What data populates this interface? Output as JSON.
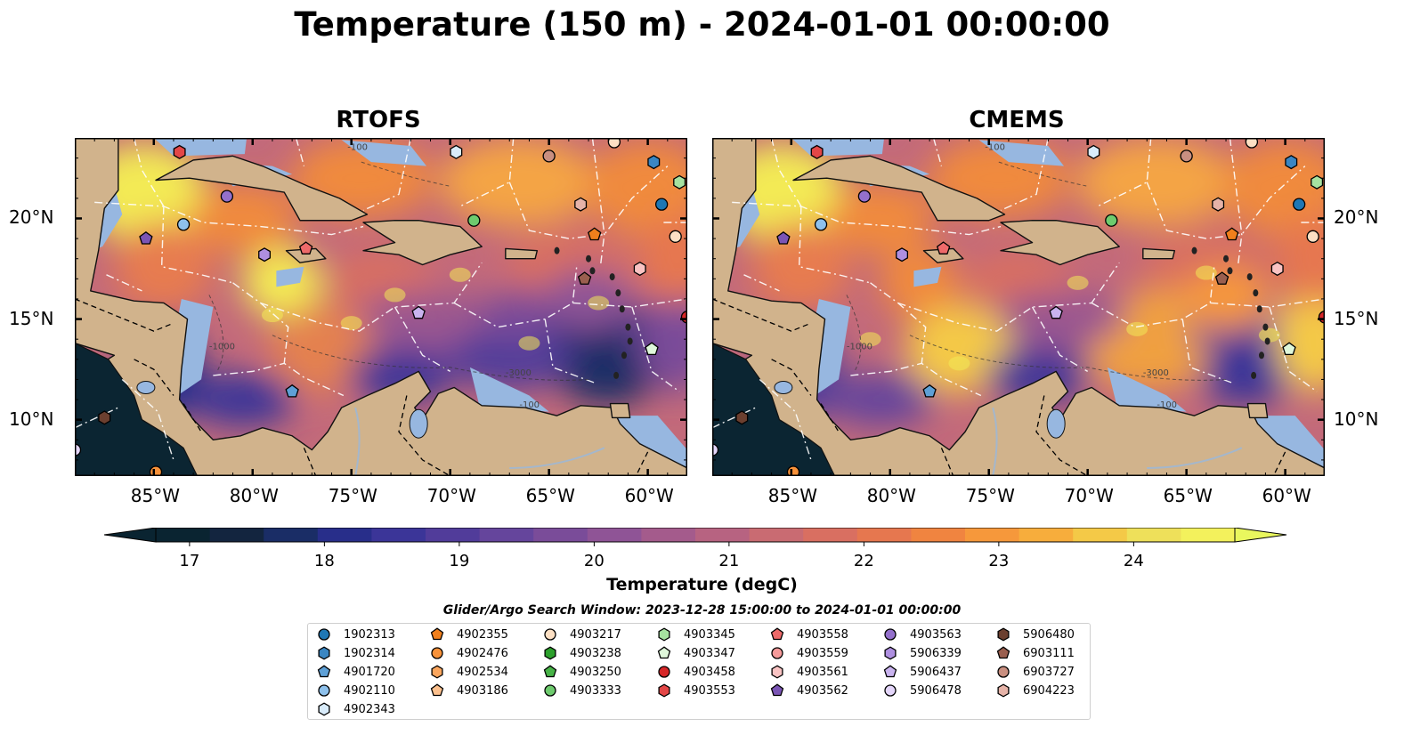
{
  "title": "Temperature (150 m) - 2024-01-01 00:00:00",
  "panels": [
    {
      "title": "RTOFS"
    },
    {
      "title": "CMEMS"
    }
  ],
  "axes": {
    "lon_ticks": [
      "85°W",
      "80°W",
      "75°W",
      "70°W",
      "65°W",
      "60°W"
    ],
    "lat_ticks": [
      "20°N",
      "15°N",
      "10°N"
    ],
    "lon_range": [
      -89,
      -58
    ],
    "lat_range": [
      7.2,
      24
    ]
  },
  "colorbar": {
    "label": "Temperature (degC)",
    "ticks": [
      "17",
      "18",
      "19",
      "20",
      "21",
      "22",
      "23",
      "24"
    ],
    "range": [
      16.75,
      24.75
    ],
    "extend": "both",
    "colors": [
      "#0a2431",
      "#13253f",
      "#1a2d66",
      "#282e8a",
      "#3b3598",
      "#513c9a",
      "#65459c",
      "#7a4c99",
      "#8f5496",
      "#a45b8c",
      "#b76381",
      "#c96b72",
      "#d96f61",
      "#e6774f",
      "#f08440",
      "#f6983b",
      "#f7ad3c",
      "#f4c947",
      "#eee05a",
      "#f3f15c"
    ],
    "min_color": "#0a2431",
    "max_color": "#e9f75e"
  },
  "map_colors": {
    "land": "#d1b38c",
    "shallow_water": "#97b7e0",
    "deep_low": "#2b2d7e",
    "mid": "#9a5690",
    "warm": "#f08a3c",
    "hot": "#f3ea55",
    "pacific": "#0b2532"
  },
  "contour_labels": [
    "-100",
    "-1000",
    "-3000"
  ],
  "legend": {
    "title": "Glider/Argo Search Window: 2023-12-28 15:00:00 to 2024-01-01 00:00:00",
    "columns": [
      [
        {
          "id": "1902313",
          "marker": "circle",
          "color": "#1f77b4"
        },
        {
          "id": "1902314",
          "marker": "hexagon",
          "color": "#3a86c2"
        },
        {
          "id": "4901720",
          "marker": "pentagon",
          "color": "#5ea0d6"
        },
        {
          "id": "4902110",
          "marker": "circle",
          "color": "#8ec1ec"
        },
        {
          "id": "4902343",
          "marker": "hexagon",
          "color": "#d9ecfb"
        }
      ],
      [
        {
          "id": "4902355",
          "marker": "pentagon",
          "color": "#f07f1c"
        },
        {
          "id": "4902476",
          "marker": "circle",
          "color": "#f8923a"
        },
        {
          "id": "4902534",
          "marker": "hexagon",
          "color": "#fba65e"
        },
        {
          "id": "4903186",
          "marker": "pentagon",
          "color": "#fcc08d"
        }
      ],
      [
        {
          "id": "4903217",
          "marker": "circle",
          "color": "#fde0c4"
        },
        {
          "id": "4903238",
          "marker": "hexagon",
          "color": "#2ca02c"
        },
        {
          "id": "4903250",
          "marker": "pentagon",
          "color": "#47b347"
        },
        {
          "id": "4903333",
          "marker": "circle",
          "color": "#6ecb6e"
        }
      ],
      [
        {
          "id": "4903345",
          "marker": "hexagon",
          "color": "#a6e2a0"
        },
        {
          "id": "4903347",
          "marker": "pentagon",
          "color": "#dff7da"
        },
        {
          "id": "4903458",
          "marker": "circle",
          "color": "#d62728"
        },
        {
          "id": "4903553",
          "marker": "hexagon",
          "color": "#e34747"
        }
      ],
      [
        {
          "id": "4903558",
          "marker": "pentagon",
          "color": "#ee6a6a"
        },
        {
          "id": "4903559",
          "marker": "circle",
          "color": "#f59a9a"
        },
        {
          "id": "4903561",
          "marker": "hexagon",
          "color": "#f9c3c3"
        },
        {
          "id": "4903562",
          "marker": "pentagon",
          "color": "#7b55b5"
        }
      ],
      [
        {
          "id": "4903563",
          "marker": "circle",
          "color": "#9470cc"
        },
        {
          "id": "5906339",
          "marker": "hexagon",
          "color": "#ae8fe0"
        },
        {
          "id": "5906437",
          "marker": "pentagon",
          "color": "#c9b3ef"
        },
        {
          "id": "5906478",
          "marker": "circle",
          "color": "#e4d6fa"
        }
      ],
      [
        {
          "id": "5906480",
          "marker": "hexagon",
          "color": "#6b3f2f"
        },
        {
          "id": "6903111",
          "marker": "pentagon",
          "color": "#9a5f4f"
        },
        {
          "id": "6903727",
          "marker": "circle",
          "color": "#c98f80"
        },
        {
          "id": "6904223",
          "marker": "hexagon",
          "color": "#e6b3a8"
        }
      ]
    ]
  },
  "floats": [
    {
      "id": "4903553",
      "lon": -83.7,
      "lat": 23.3
    },
    {
      "id": "4902343",
      "lon": -69.7,
      "lat": 23.3
    },
    {
      "id": "6903727",
      "lon": -65.0,
      "lat": 23.1
    },
    {
      "id": "4903217",
      "lon": -61.7,
      "lat": 23.8
    },
    {
      "id": "1902314",
      "lon": -59.7,
      "lat": 22.8
    },
    {
      "id": "4903345",
      "lon": -58.4,
      "lat": 21.8
    },
    {
      "id": "4903563",
      "lon": -81.3,
      "lat": 21.1
    },
    {
      "id": "6904223",
      "lon": -63.4,
      "lat": 20.7
    },
    {
      "id": "1902313",
      "lon": -59.3,
      "lat": 20.7
    },
    {
      "id": "4902110",
      "lon": -83.5,
      "lat": 19.7
    },
    {
      "id": "4903333",
      "lon": -68.8,
      "lat": 19.9
    },
    {
      "id": "4902355",
      "lon": -62.7,
      "lat": 19.2
    },
    {
      "id": "4903217",
      "lon": -58.6,
      "lat": 19.1
    },
    {
      "id": "4903562",
      "lon": -85.4,
      "lat": 19.0
    },
    {
      "id": "5906339",
      "lon": -79.4,
      "lat": 18.2
    },
    {
      "id": "4903558",
      "lon": -77.3,
      "lat": 18.5
    },
    {
      "id": "4903561",
      "lon": -60.4,
      "lat": 17.5
    },
    {
      "id": "6903111",
      "lon": -63.2,
      "lat": 17.0
    },
    {
      "id": "5906437",
      "lon": -71.6,
      "lat": 15.3
    },
    {
      "id": "4903458",
      "lon": -58.0,
      "lat": 15.1
    },
    {
      "id": "4903347",
      "lon": -59.8,
      "lat": 13.5
    },
    {
      "id": "4901720",
      "lon": -78.0,
      "lat": 11.4
    },
    {
      "id": "5906480",
      "lon": -87.5,
      "lat": 10.1
    },
    {
      "id": "4902476",
      "lon": -84.9,
      "lat": 7.4
    },
    {
      "id": "5906478",
      "lon": -89.0,
      "lat": 8.5
    }
  ]
}
